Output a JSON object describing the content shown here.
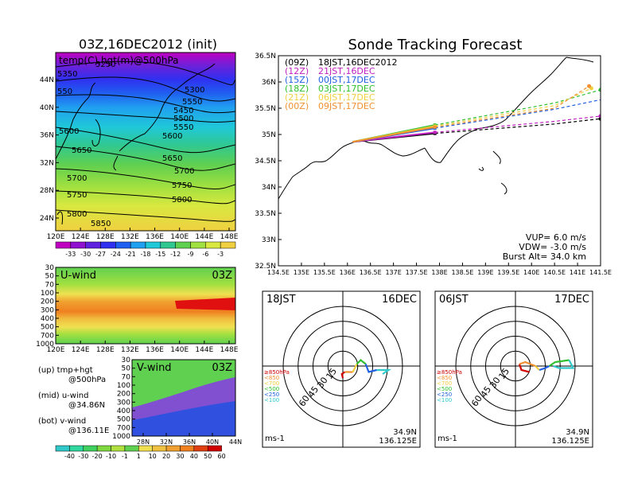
{
  "left_title": "03Z,16DEC2012 (init)",
  "main_title": "Sonde Tracking Forecast",
  "colors": {
    "track_09z": "#000000",
    "track_12z": "#c020c0",
    "track_15z": "#2060e0",
    "track_18z": "#30c030",
    "track_21z": "#f0d040",
    "track_00z": "#f09030"
  },
  "temp_map": {
    "label": "temp(C),hgt(m)@500hPa",
    "x_ticks": [
      "120E",
      "124E",
      "128E",
      "132E",
      "136E",
      "140E",
      "144E",
      "148E"
    ],
    "y_ticks": [
      "24N",
      "28N",
      "32N",
      "36N",
      "40N",
      "44N"
    ],
    "contour_labels": [
      "5250",
      "5350",
      "550",
      "5300",
      "5550",
      "5450",
      "5500",
      "5550",
      "5600",
      "5600",
      "5650",
      "5650",
      "5700",
      "5700",
      "5750",
      "5750",
      "5800",
      "5800",
      "5850"
    ],
    "colorbar_labels": [
      "-33",
      "-30",
      "-27",
      "-24",
      "-21",
      "-18",
      "-15",
      "-12",
      "-9",
      "-6",
      "-3"
    ],
    "colorbar_colors": [
      "#c000c0",
      "#9010d0",
      "#6020e0",
      "#3030f0",
      "#2060f0",
      "#20a0f0",
      "#20c8d8",
      "#30c890",
      "#60d050",
      "#a0e040",
      "#d8e840",
      "#f0d040"
    ]
  },
  "u_wind": {
    "label": "U-wind",
    "time": "03Z",
    "y_ticks": [
      "30",
      "50",
      "70",
      "100",
      "200",
      "300",
      "400",
      "500",
      "700",
      "1000"
    ],
    "x_ticks": [
      "120E",
      "124E",
      "128E",
      "132E",
      "136E",
      "140E",
      "144E",
      "148E"
    ]
  },
  "v_wind": {
    "label": "V-wind",
    "time": "03Z",
    "y_ticks": [
      "30",
      "50",
      "70",
      "100",
      "200",
      "300",
      "400",
      "500",
      "700",
      "1000"
    ],
    "x_ticks": [
      "28N",
      "32N",
      "36N",
      "40N",
      "44N"
    ]
  },
  "wind_colorbar": {
    "labels": [
      "-40",
      "-30",
      "-20",
      "-10",
      "-1",
      "1",
      "10",
      "20",
      "30",
      "40",
      "50",
      "60"
    ],
    "colors": [
      "#30c8c8",
      "#30d8a0",
      "#40d060",
      "#80d840",
      "#b0e040",
      "#60d050",
      "#f0e050",
      "#f0c040",
      "#f0a030",
      "#f08020",
      "#e04010",
      "#d00000"
    ]
  },
  "legend_notes": [
    "(up) tmp+hgt",
    "@500hPa",
    "(mid) u-wind",
    "@34.86N",
    "(bot) v-wind",
    "@136.11E"
  ],
  "track_chart": {
    "legend": [
      {
        "key": "(09Z)",
        "text": "18JST,16DEC2012"
      },
      {
        "key": "(12Z)",
        "text": "21JST,16DEC"
      },
      {
        "key": "(15Z)",
        "text": "00JST,17DEC"
      },
      {
        "key": "(18Z)",
        "text": "03JST,17DEC"
      },
      {
        "key": "(21Z)",
        "text": "06JST,17DEC"
      },
      {
        "key": "(00Z)",
        "text": "09JST,17DEC"
      }
    ],
    "x_ticks": [
      "134.5E",
      "135E",
      "135.5E",
      "136E",
      "136.5E",
      "137E",
      "137.5E",
      "138E",
      "138.5E",
      "139E",
      "139.5E",
      "140E",
      "140.5E",
      "141E",
      "141.5E"
    ],
    "y_ticks": [
      "32.5N",
      "33N",
      "33.5N",
      "34N",
      "34.5N",
      "35N",
      "35.5N",
      "36N",
      "36.5N"
    ],
    "xlim": [
      134.5,
      141.5
    ],
    "ylim": [
      32.5,
      36.5
    ],
    "info": [
      "VUP= 6.0 m/s",
      "VDW= -3.0 m/s",
      "Burst Alt= 34.0 km"
    ]
  },
  "chart_data": {
    "type": "line",
    "title": "Sonde Tracking Forecast",
    "xlabel": "",
    "ylabel": "",
    "xlim": [
      134.5,
      141.5
    ],
    "ylim": [
      32.5,
      36.5
    ],
    "launch": {
      "lon": 136.11,
      "lat": 34.86
    },
    "series": [
      {
        "name": "(09Z) 18JST,16DEC2012",
        "color": "#000000",
        "solid": [
          [
            136.11,
            34.86
          ],
          [
            137.9,
            35.02
          ]
        ],
        "dashed": [
          [
            137.9,
            35.02
          ],
          [
            140.5,
            35.2
          ],
          [
            141.5,
            35.3
          ]
        ]
      },
      {
        "name": "(12Z) 21JST,16DEC",
        "color": "#c020c0",
        "solid": [
          [
            136.11,
            34.86
          ],
          [
            137.9,
            35.04
          ]
        ],
        "dashed": [
          [
            137.9,
            35.04
          ],
          [
            140.5,
            35.25
          ],
          [
            141.5,
            35.35
          ]
        ]
      },
      {
        "name": "(15Z) 00JST,17DEC",
        "color": "#2060e0",
        "solid": [
          [
            136.11,
            34.86
          ],
          [
            137.9,
            35.12
          ]
        ],
        "dashed": [
          [
            137.9,
            35.12
          ],
          [
            140.5,
            35.48
          ],
          [
            141.6,
            35.68
          ]
        ]
      },
      {
        "name": "(18Z) 03JST,17DEC",
        "color": "#30c030",
        "solid": [
          [
            136.11,
            34.86
          ],
          [
            137.9,
            35.18
          ]
        ],
        "dashed": [
          [
            137.9,
            35.18
          ],
          [
            140.5,
            35.6
          ],
          [
            141.5,
            35.85
          ]
        ]
      },
      {
        "name": "(21Z) 06JST,17DEC",
        "color": "#f0d040",
        "solid": [
          [
            136.11,
            34.86
          ],
          [
            137.9,
            35.16
          ]
        ],
        "dashed": [
          [
            137.9,
            35.16
          ],
          [
            140.5,
            35.55
          ],
          [
            141.3,
            35.88
          ]
        ]
      },
      {
        "name": "(00Z) 09JST,17DEC",
        "color": "#f09030",
        "solid": [
          [
            136.11,
            34.86
          ],
          [
            137.9,
            35.14
          ]
        ],
        "dashed": [
          [
            137.9,
            35.14
          ],
          [
            140.5,
            35.5
          ],
          [
            141.25,
            35.92
          ]
        ]
      }
    ]
  },
  "hodographs": [
    {
      "left": "18JST",
      "right": "16DEC",
      "rings": [
        "15",
        "30",
        "45",
        "60"
      ],
      "levels": [
        "≥850hPa",
        "<850",
        "<700",
        "<500",
        "<250",
        "<100"
      ],
      "unit": "ms-1",
      "coords": [
        "34.9N",
        "136.125E"
      ],
      "segments": [
        {
          "color": "#d00000",
          "pts": [
            [
              0,
              -12
            ],
            [
              -1,
              -8
            ],
            [
              2,
              -6
            ]
          ]
        },
        {
          "color": "#f09030",
          "pts": [
            [
              2,
              -6
            ],
            [
              10,
              -6
            ]
          ]
        },
        {
          "color": "#f0d040",
          "pts": [
            [
              10,
              -6
            ],
            [
              14,
              2
            ]
          ]
        },
        {
          "color": "#30c030",
          "pts": [
            [
              14,
              2
            ],
            [
              18,
              6
            ],
            [
              23,
              2
            ]
          ]
        },
        {
          "color": "#2060e0",
          "pts": [
            [
              23,
              2
            ],
            [
              26,
              -6
            ],
            [
              34,
              -4
            ]
          ]
        },
        {
          "color": "#30c8c8",
          "pts": [
            [
              34,
              -4
            ],
            [
              46,
              -4
            ],
            [
              40,
              -8
            ]
          ]
        }
      ]
    },
    {
      "left": "06JST",
      "right": "17DEC",
      "rings": [
        "15",
        "30",
        "45",
        "60"
      ],
      "levels": [
        "≥850hPa",
        "<850",
        "<700",
        "<500",
        "<250",
        "<100"
      ],
      "unit": "ms-1",
      "coords": [
        "34.9N",
        "136.125E"
      ],
      "segments": [
        {
          "color": "#d00000",
          "pts": [
            [
              14,
              -6
            ],
            [
              6,
              -4
            ],
            [
              4,
              2
            ]
          ]
        },
        {
          "color": "#f09030",
          "pts": [
            [
              4,
              2
            ],
            [
              10,
              4
            ],
            [
              20,
              0
            ]
          ]
        },
        {
          "color": "#f0d040",
          "pts": [
            [
              20,
              0
            ],
            [
              24,
              -4
            ]
          ]
        },
        {
          "color": "#2060e0",
          "pts": [
            [
              24,
              -4
            ],
            [
              30,
              -2
            ],
            [
              34,
              0
            ]
          ]
        },
        {
          "color": "#30c030",
          "pts": [
            [
              34,
              0
            ],
            [
              40,
              4
            ],
            [
              54,
              6
            ]
          ]
        },
        {
          "color": "#30c8c8",
          "pts": [
            [
              54,
              6
            ],
            [
              58,
              -2
            ],
            [
              44,
              -2
            ],
            [
              38,
              0
            ]
          ]
        }
      ]
    }
  ]
}
